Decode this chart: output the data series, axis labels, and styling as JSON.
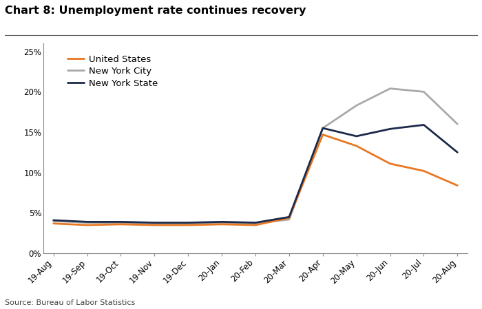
{
  "title": "Chart 8: Unemployment rate continues recovery",
  "source": "Source: Bureau of Labor Statistics",
  "x_labels": [
    "19-Aug",
    "19-Sep",
    "19-Oct",
    "19-Nov",
    "19-Dec",
    "20-Jan",
    "20-Feb",
    "20-Mar",
    "20-Apr",
    "20-May",
    "20-Jun",
    "20-Jul",
    "20-Aug"
  ],
  "us_values": [
    3.7,
    3.5,
    3.6,
    3.5,
    3.5,
    3.6,
    3.5,
    4.4,
    14.7,
    13.3,
    11.1,
    10.2,
    8.4
  ],
  "nyc_values": [
    4.0,
    3.8,
    3.8,
    3.7,
    3.7,
    3.8,
    3.7,
    4.2,
    15.5,
    18.3,
    20.4,
    20.0,
    16.0
  ],
  "nys_values": [
    4.1,
    3.9,
    3.9,
    3.8,
    3.8,
    3.9,
    3.8,
    4.5,
    15.5,
    14.5,
    15.4,
    15.9,
    12.5
  ],
  "us_color": "#E87722",
  "nyc_color": "#A9A9A9",
  "nys_color": "#1B2A4A",
  "line_width": 2.0,
  "ylim": [
    0,
    26
  ],
  "yticks": [
    0,
    5,
    10,
    15,
    20,
    25
  ],
  "background_color": "#FFFFFF",
  "title_fontsize": 11.5,
  "legend_fontsize": 9.5,
  "tick_fontsize": 8.5,
  "source_fontsize": 8.0
}
